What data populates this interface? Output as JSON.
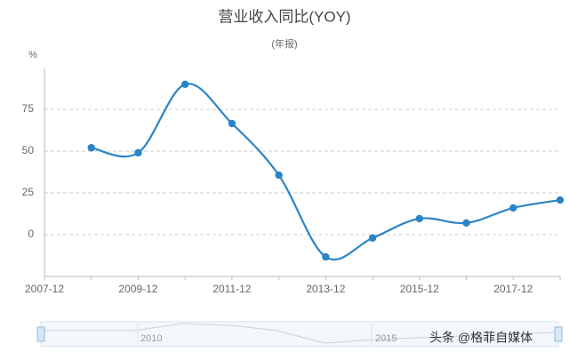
{
  "chart_data": {
    "type": "line",
    "title": "营业收入同比(YOY)",
    "subtitle": "(年报)",
    "y_unit": "%",
    "categories": [
      "2007-12",
      null,
      "2009-12",
      null,
      "2011-12",
      null,
      "2013-12",
      null,
      "2015-12",
      null,
      "2017-12",
      null
    ],
    "series": [
      {
        "name": "营业收入同比",
        "color": "#2a84c8",
        "values": [
          null,
          52,
          49,
          90,
          66.5,
          35.6,
          -13.3,
          -2,
          9.6,
          7,
          16,
          20.7
        ]
      }
    ],
    "ylim": [
      -25,
      100
    ],
    "yticks": [
      0,
      25,
      50,
      75
    ],
    "grid": true,
    "smooth": true
  },
  "slider_labels": [
    "2010",
    "2015"
  ],
  "watermark": "头条 @格菲自媒体"
}
